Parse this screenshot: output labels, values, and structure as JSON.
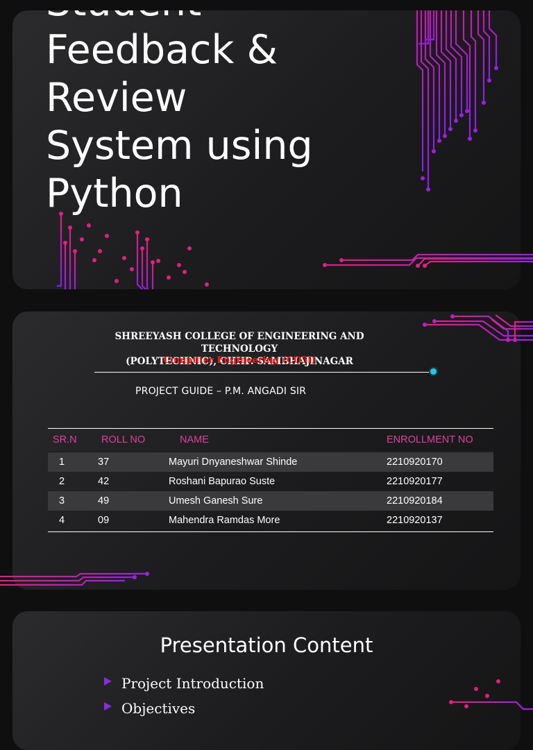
{
  "slide1": {
    "title": "Student Feedback & Review System using Python"
  },
  "slide2": {
    "college_line1": "SHREEYASH COLLEGE OF ENGINEERING AND TECHNOLOGY",
    "college_line2": "(POLYTECHNIC), CHHP. SAMBHAJINAGAR",
    "department": "Computer Engineering (CO5i)",
    "guide": "PROJECT GUIDE – P.M. ANGADI SIR",
    "table": {
      "headers": [
        "SR.N",
        "ROLL NO",
        "NAME",
        "ENROLLMENT NO"
      ],
      "rows": [
        [
          "1",
          "37",
          "Mayuri Dnyaneshwar Shinde",
          "2210920170"
        ],
        [
          "2",
          "42",
          "Roshani Bapurao Suste",
          "2210920177"
        ],
        [
          "3",
          "49",
          "Umesh Ganesh Sure",
          "2210920184"
        ],
        [
          "4",
          "09",
          "Mahendra Ramdas More",
          "2210920137"
        ]
      ]
    }
  },
  "slide3": {
    "title": "Presentation Content",
    "bullets": [
      "Project Introduction",
      "Objectives"
    ]
  },
  "colors": {
    "accent_magenta": "#e0409b",
    "accent_purple": "#8a2be2",
    "department_red": "#ff1a1a",
    "divider_dot": "#22c8e6"
  }
}
